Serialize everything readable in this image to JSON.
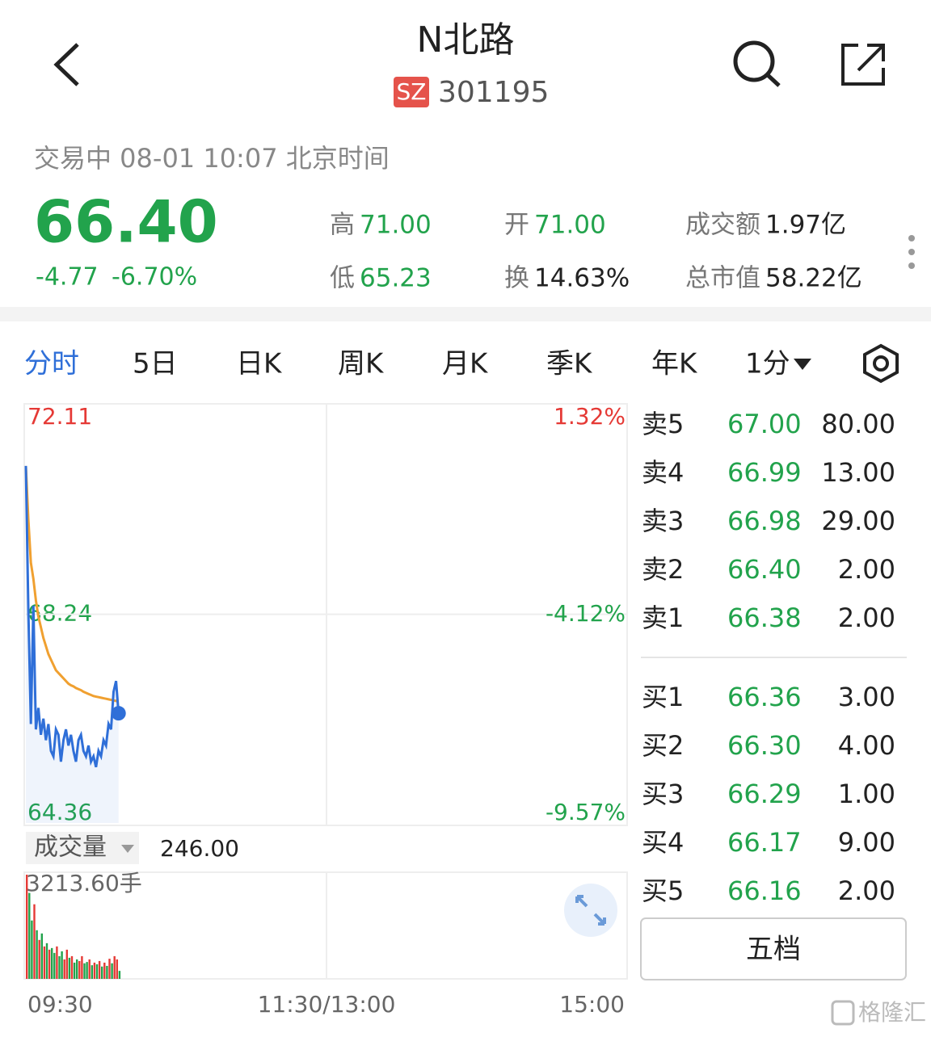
{
  "header": {
    "title": "N北路",
    "exchange": "SZ",
    "code": "301195"
  },
  "quote": {
    "status": "交易中 08-01 10:07 北京时间",
    "price": "66.40",
    "change": "-4.77",
    "change_pct": "-6.70%",
    "stats": [
      {
        "label": "高",
        "value": "71.00"
      },
      {
        "label": "开",
        "value": "71.00"
      },
      {
        "label": "成交额",
        "value": "1.97亿"
      },
      {
        "label": "低",
        "value": "65.23"
      },
      {
        "label": "换",
        "value": "14.63%"
      },
      {
        "label": "总市值",
        "value": "58.22亿"
      }
    ]
  },
  "tabs": [
    "分时",
    "5日",
    "日K",
    "周K",
    "月K",
    "季K",
    "年K",
    "1分"
  ],
  "chart_data": [
    {
      "type": "line",
      "x": [
        0,
        1,
        2,
        3,
        4,
        5,
        6,
        7,
        8,
        9,
        10,
        11,
        12,
        13,
        14,
        15,
        16,
        17,
        18,
        19,
        20,
        21,
        22,
        23,
        24,
        25,
        26,
        27,
        28,
        29,
        30,
        31,
        32,
        33,
        34,
        35,
        36,
        37
      ],
      "series": [
        {
          "color": "#2f6fd8",
          "values": [
            71.0,
            68.3,
            66.2,
            68.4,
            66.1,
            66.5,
            66.0,
            66.3,
            65.9,
            66.2,
            65.7,
            65.6,
            66.1,
            66.0,
            65.5,
            65.9,
            66.1,
            65.8,
            66.0,
            65.7,
            65.5,
            65.9,
            66.0,
            65.7,
            65.6,
            65.8,
            65.5,
            65.6,
            65.4,
            65.7,
            65.6,
            65.9,
            65.8,
            66.2,
            66.1,
            66.8,
            67.0,
            66.4
          ]
        },
        {
          "color": "#f0a030",
          "values": [
            71.0,
            70.0,
            69.2,
            68.9,
            68.5,
            68.2,
            68.0,
            67.8,
            67.65,
            67.5,
            67.4,
            67.3,
            67.2,
            67.15,
            67.1,
            67.05,
            67.0,
            66.95,
            66.92,
            66.9,
            66.87,
            66.85,
            66.83,
            66.8,
            66.78,
            66.76,
            66.74,
            66.72,
            66.71,
            66.7,
            66.69,
            66.68,
            66.67,
            66.66,
            66.65,
            66.64,
            66.63,
            66.62
          ]
        }
      ],
      "xlim": [
        0,
        240
      ],
      "xticks": [
        {
          "value": 0,
          "label": "09:30"
        },
        {
          "value": 120,
          "label": "11:30/13:00"
        },
        {
          "value": 240,
          "label": "15:00"
        }
      ],
      "ylim": [
        64.36,
        72.11
      ],
      "yticks": [
        72.11,
        68.24,
        64.36
      ],
      "y2lim": [
        -9.57,
        1.32
      ],
      "y2ticks": [
        {
          "value": 1.32,
          "label": "1.32%"
        },
        {
          "value": -4.12,
          "label": "-4.12%"
        },
        {
          "value": -9.57,
          "label": "-9.57%"
        }
      ],
      "grid": true
    },
    {
      "type": "bar",
      "title": "成交量",
      "selected_value": "246.00",
      "x": [
        0,
        1,
        2,
        3,
        4,
        5,
        6,
        7,
        8,
        9,
        10,
        11,
        12,
        13,
        14,
        15,
        16,
        17,
        18,
        19,
        20,
        21,
        22,
        23,
        24,
        25,
        26,
        27,
        28,
        29,
        30,
        31,
        32,
        33,
        34,
        35,
        36,
        37
      ],
      "values": [
        3213.6,
        2650,
        1800,
        2300,
        1500,
        1200,
        1400,
        1000,
        1100,
        900,
        950,
        800,
        1000,
        700,
        850,
        600,
        900,
        650,
        700,
        500,
        600,
        550,
        700,
        480,
        520,
        600,
        420,
        500,
        450,
        550,
        380,
        500,
        400,
        620,
        480,
        700,
        600,
        246
      ],
      "ylim": [
        0,
        3213.6
      ],
      "yticks": [
        {
          "value": 3213.6,
          "label": "3213.60手"
        }
      ],
      "up_color": "#e53935",
      "down_color": "#22a34c"
    }
  ],
  "order_book": {
    "asks": [
      {
        "label": "卖5",
        "price": "67.00",
        "volume": "80.00"
      },
      {
        "label": "卖4",
        "price": "66.99",
        "volume": "13.00"
      },
      {
        "label": "卖3",
        "price": "66.98",
        "volume": "29.00"
      },
      {
        "label": "卖2",
        "price": "66.40",
        "volume": "2.00"
      },
      {
        "label": "卖1",
        "price": "66.38",
        "volume": "2.00"
      }
    ],
    "bids": [
      {
        "label": "买1",
        "price": "66.36",
        "volume": "3.00"
      },
      {
        "label": "买2",
        "price": "66.30",
        "volume": "4.00"
      },
      {
        "label": "买3",
        "price": "66.29",
        "volume": "1.00"
      },
      {
        "label": "买4",
        "price": "66.17",
        "volume": "9.00"
      },
      {
        "label": "买5",
        "price": "66.16",
        "volume": "2.00"
      }
    ],
    "button": "五档"
  },
  "watermark": "格隆汇"
}
